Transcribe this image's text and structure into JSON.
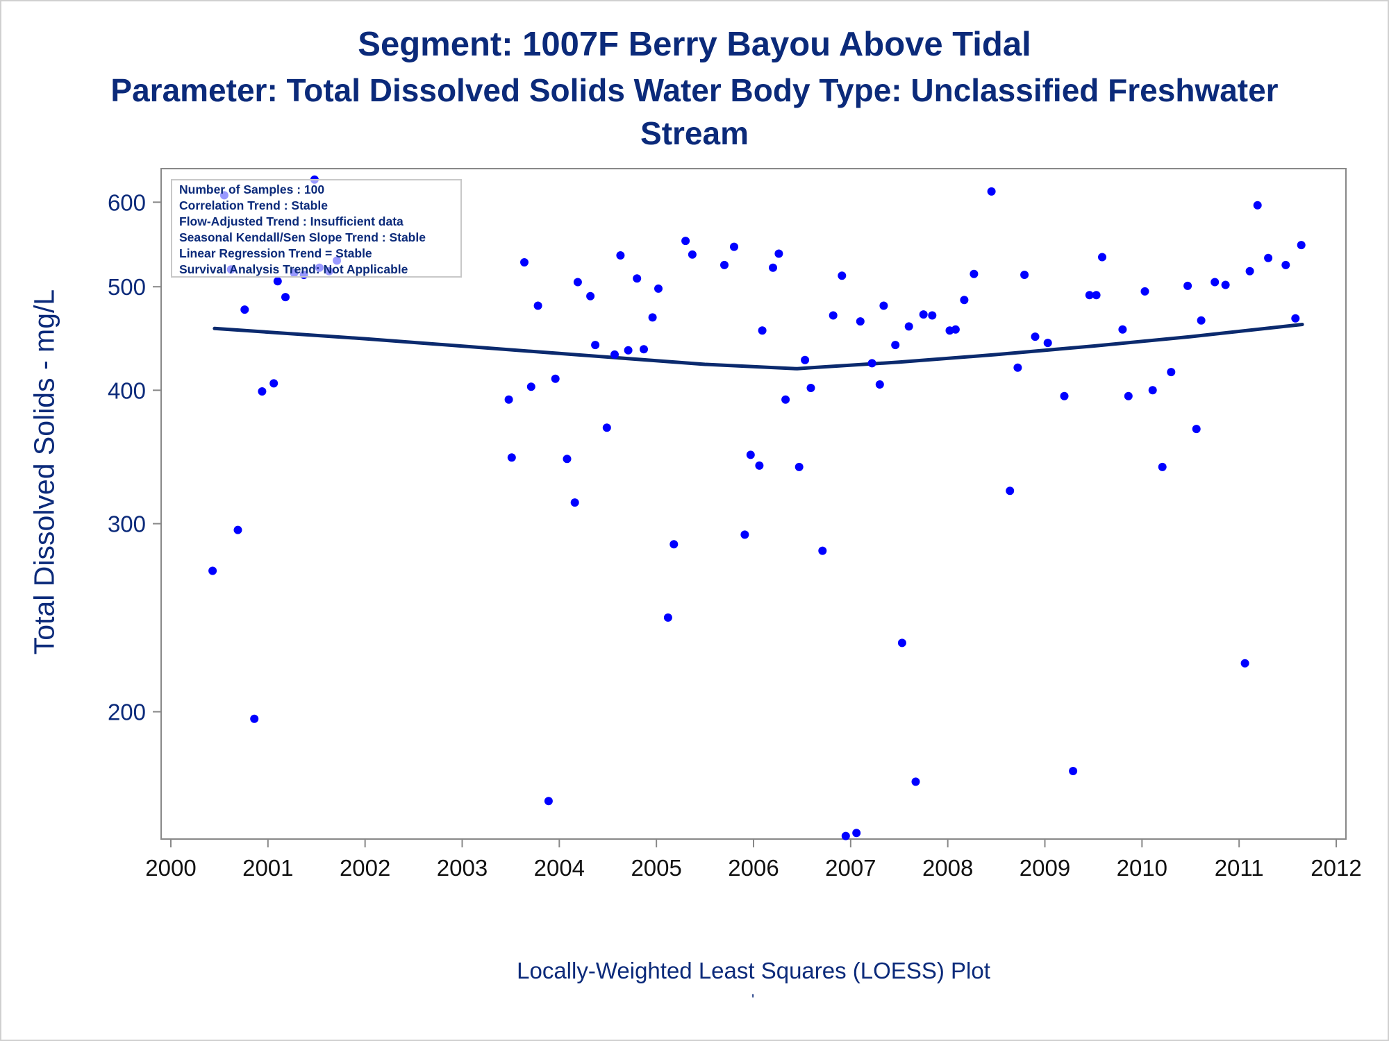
{
  "titles": {
    "line1": "Segment: 1007F  Berry Bayou Above Tidal",
    "line2": "Parameter: Total Dissolved Solids   Water Body Type: Unclassified Freshwater",
    "line3": "Stream"
  },
  "footnote": "Locally-Weighted Least Squares (LOESS) Plot",
  "footnote_mark": "'",
  "stats_box": {
    "lines": [
      "Number of Samples : 100",
      "Correlation Trend : Stable",
      "Flow-Adjusted Trend : Insufficient data",
      "Seasonal Kendall/Sen Slope Trend : Stable",
      "Linear Regression Trend = Stable",
      "Survival Analysis Trend: Not Applicable"
    ]
  },
  "colors": {
    "title": "#0b2a7a",
    "points": "#0000ff",
    "loess_line": "#0b2a6e",
    "axis": "#888888"
  },
  "chart_data": {
    "type": "scatter",
    "ylabel": "Total Dissolved Solids - mg/L",
    "xlabel": "",
    "yscale": "log",
    "ylim": [
      152,
      645
    ],
    "xlim": [
      1999.9,
      2012.1
    ],
    "yticks": [
      200,
      300,
      400,
      500,
      600
    ],
    "xticks": [
      2000,
      2001,
      2002,
      2003,
      2004,
      2005,
      2006,
      2007,
      2008,
      2009,
      2010,
      2011,
      2012
    ],
    "grid": false,
    "series": [
      {
        "kind": "points",
        "points": [
          [
            2000.43,
            271
          ],
          [
            2000.55,
            609
          ],
          [
            2000.62,
            519
          ],
          [
            2000.69,
            296
          ],
          [
            2000.76,
            476
          ],
          [
            2000.86,
            197
          ],
          [
            2000.94,
            399
          ],
          [
            2001.06,
            406
          ],
          [
            2001.1,
            506
          ],
          [
            2001.18,
            489
          ],
          [
            2001.27,
            515
          ],
          [
            2001.37,
            513
          ],
          [
            2001.48,
            630
          ],
          [
            2001.53,
            521
          ],
          [
            2001.63,
            517
          ],
          [
            2001.71,
            529
          ],
          [
            2003.48,
            392
          ],
          [
            2003.51,
            346
          ],
          [
            2003.64,
            527
          ],
          [
            2003.71,
            403
          ],
          [
            2003.78,
            480
          ],
          [
            2003.89,
            165
          ],
          [
            2003.96,
            410
          ],
          [
            2004.08,
            345
          ],
          [
            2004.16,
            314
          ],
          [
            2004.19,
            505
          ],
          [
            2004.32,
            490
          ],
          [
            2004.37,
            441
          ],
          [
            2004.49,
            369
          ],
          [
            2004.57,
            432
          ],
          [
            2004.63,
            535
          ],
          [
            2004.71,
            436
          ],
          [
            2004.8,
            509
          ],
          [
            2004.87,
            437
          ],
          [
            2004.96,
            468
          ],
          [
            2005.02,
            498
          ],
          [
            2005.12,
            245
          ],
          [
            2005.18,
            287
          ],
          [
            2005.3,
            552
          ],
          [
            2005.37,
            536
          ],
          [
            2005.7,
            524
          ],
          [
            2005.8,
            545
          ],
          [
            2005.91,
            293
          ],
          [
            2005.97,
            348
          ],
          [
            2006.06,
            340
          ],
          [
            2006.09,
            455
          ],
          [
            2006.2,
            521
          ],
          [
            2006.26,
            537
          ],
          [
            2006.33,
            392
          ],
          [
            2006.47,
            339
          ],
          [
            2006.53,
            427
          ],
          [
            2006.59,
            402
          ],
          [
            2006.71,
            283
          ],
          [
            2006.82,
            470
          ],
          [
            2006.91,
            512
          ],
          [
            2006.95,
            153
          ],
          [
            2007.06,
            154
          ],
          [
            2007.1,
            464
          ],
          [
            2007.22,
            424
          ],
          [
            2007.3,
            405
          ],
          [
            2007.34,
            480
          ],
          [
            2007.46,
            441
          ],
          [
            2007.53,
            232
          ],
          [
            2007.6,
            459
          ],
          [
            2007.67,
            172
          ],
          [
            2007.75,
            471
          ],
          [
            2007.84,
            470
          ],
          [
            2008.02,
            455
          ],
          [
            2008.08,
            456
          ],
          [
            2008.17,
            486
          ],
          [
            2008.27,
            514
          ],
          [
            2008.45,
            614
          ],
          [
            2008.64,
            322
          ],
          [
            2008.72,
            420
          ],
          [
            2008.79,
            513
          ],
          [
            2008.9,
            449
          ],
          [
            2009.03,
            443
          ],
          [
            2009.2,
            395
          ],
          [
            2009.29,
            176
          ],
          [
            2009.46,
            491
          ],
          [
            2009.53,
            491
          ],
          [
            2009.59,
            533
          ],
          [
            2009.8,
            456
          ],
          [
            2009.86,
            395
          ],
          [
            2010.03,
            495
          ],
          [
            2010.11,
            400
          ],
          [
            2010.21,
            339
          ],
          [
            2010.3,
            416
          ],
          [
            2010.47,
            501
          ],
          [
            2010.56,
            368
          ],
          [
            2010.61,
            465
          ],
          [
            2010.75,
            505
          ],
          [
            2010.86,
            502
          ],
          [
            2011.06,
            222
          ],
          [
            2011.11,
            517
          ],
          [
            2011.19,
            596
          ],
          [
            2011.3,
            532
          ],
          [
            2011.48,
            524
          ],
          [
            2011.58,
            467
          ],
          [
            2011.64,
            547
          ]
        ]
      },
      {
        "kind": "loess",
        "points": [
          [
            2000.45,
            457
          ],
          [
            2002.0,
            447
          ],
          [
            2004.0,
            433
          ],
          [
            2005.5,
            423
          ],
          [
            2006.45,
            419
          ],
          [
            2006.6,
            420
          ],
          [
            2007.5,
            425
          ],
          [
            2008.5,
            432
          ],
          [
            2009.5,
            440
          ],
          [
            2010.5,
            449
          ],
          [
            2011.65,
            461
          ]
        ]
      }
    ]
  }
}
